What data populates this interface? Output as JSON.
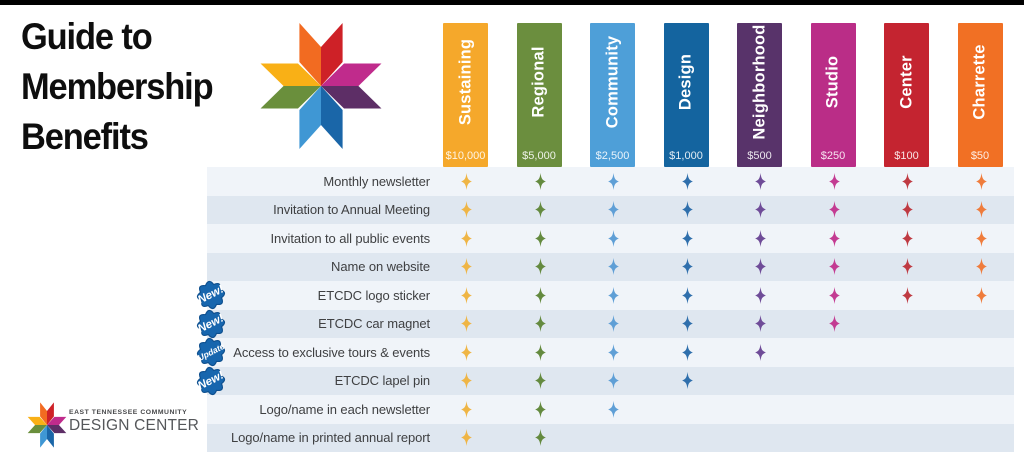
{
  "title": {
    "lines": [
      "Guide to",
      "Membership",
      "Benefits"
    ]
  },
  "brand": {
    "logo_colors": {
      "orange": "#F26B21",
      "red": "#CE2127",
      "magenta": "#C02B8C",
      "purple": "#5D2E66",
      "dark_blue": "#1A66A8",
      "light_blue": "#3F97D4",
      "yellow": "#F9B016",
      "green": "#6A8F3C"
    },
    "footer_line1": "EAST TENNESSEE COMMUNITY",
    "footer_line2": "DESIGN CENTER"
  },
  "badge_color": "#1766AE",
  "badge_stroke": "#0E4F8E",
  "stripe_colors": {
    "light": "#F0F4F9",
    "dark": "#DFE7F0"
  },
  "columns": [
    {
      "name": "Sustaining",
      "price": "$10,000",
      "color": "#F5A82B",
      "star_color": "#EFB545"
    },
    {
      "name": "Regional",
      "price": "$5,000",
      "color": "#6B8E3E",
      "star_color": "#648A3F"
    },
    {
      "name": "Community",
      "price": "$2,500",
      "color": "#4E9FD8",
      "star_color": "#5F9FD6"
    },
    {
      "name": "Design",
      "price": "$1,000",
      "color": "#14649F",
      "star_color": "#2F6FAC"
    },
    {
      "name": "Neighborhood",
      "price": "$500",
      "color": "#58336A",
      "star_color": "#6F4C98"
    },
    {
      "name": "Studio",
      "price": "$250",
      "color": "#BA2D87",
      "star_color": "#C33B92"
    },
    {
      "name": "Center",
      "price": "$100",
      "color": "#C42430",
      "star_color": "#BF3A42"
    },
    {
      "name": "Charrette",
      "price": "$50",
      "color": "#F17024",
      "star_color": "#EF7C3C"
    }
  ],
  "rows": [
    {
      "label": "Monthly newsletter",
      "stars": [
        1,
        1,
        1,
        1,
        1,
        1,
        1,
        1
      ]
    },
    {
      "label": "Invitation to Annual Meeting",
      "stars": [
        1,
        1,
        1,
        1,
        1,
        1,
        1,
        1
      ]
    },
    {
      "label": "Invitation to all public events",
      "stars": [
        1,
        1,
        1,
        1,
        1,
        1,
        1,
        1
      ]
    },
    {
      "label": "Name on website",
      "stars": [
        1,
        1,
        1,
        1,
        1,
        1,
        1,
        1
      ]
    },
    {
      "label": "ETCDC logo sticker",
      "badge": "New!",
      "stars": [
        1,
        1,
        1,
        1,
        1,
        1,
        1,
        1
      ]
    },
    {
      "label": "ETCDC car magnet",
      "badge": "New!",
      "stars": [
        1,
        1,
        1,
        1,
        1,
        1,
        0,
        0
      ]
    },
    {
      "label": "Access to exclusive tours & events",
      "badge": "Update",
      "stars": [
        1,
        1,
        1,
        1,
        1,
        0,
        0,
        0
      ]
    },
    {
      "label": "ETCDC lapel pin",
      "badge": "New!",
      "stars": [
        1,
        1,
        1,
        1,
        0,
        0,
        0,
        0
      ]
    },
    {
      "label": "Logo/name in each newsletter",
      "stars": [
        1,
        1,
        1,
        0,
        0,
        0,
        0,
        0
      ]
    },
    {
      "label": "Logo/name in printed annual report",
      "stars": [
        1,
        1,
        0,
        0,
        0,
        0,
        0,
        0
      ]
    }
  ]
}
